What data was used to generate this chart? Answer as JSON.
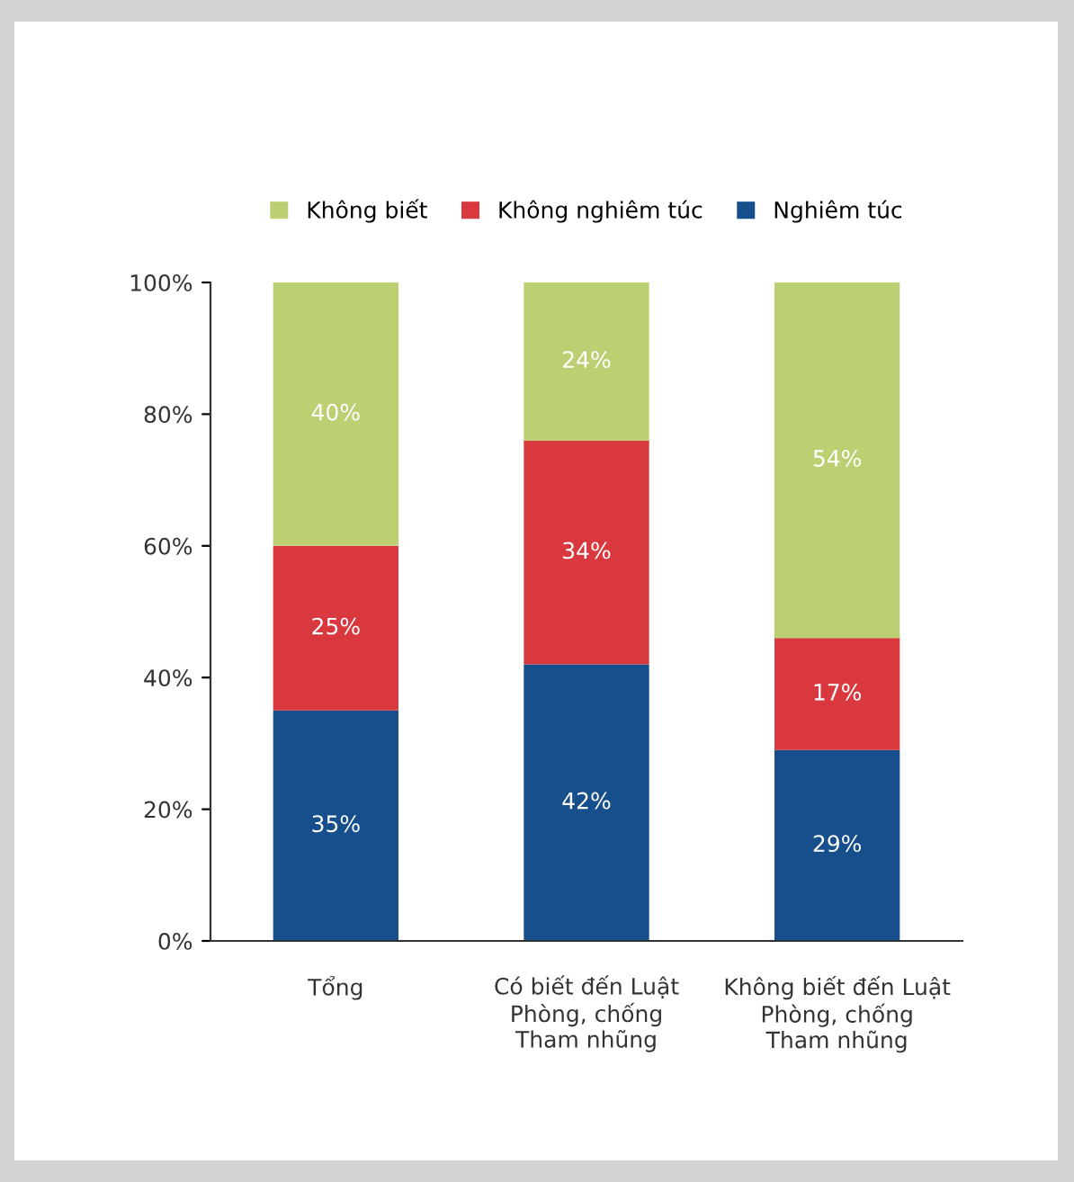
{
  "chart_data": {
    "type": "bar",
    "stacked": true,
    "categories": [
      "Tổng",
      "Có biết đến Luật\nPhòng, chống\nTham nhũng",
      "Không biết đến Luật\nPhòng, chống\nTham nhũng"
    ],
    "series": [
      {
        "name": "Nghiêm túc",
        "color": "#174f8c",
        "values": [
          35,
          42,
          29
        ],
        "value_labels": [
          "35%",
          "42%",
          "29%"
        ]
      },
      {
        "name": "Không nghiêm túc",
        "color": "#d9393e",
        "values": [
          25,
          34,
          17
        ],
        "value_labels": [
          "25%",
          "34%",
          "17%"
        ]
      },
      {
        "name": "Không biết",
        "color": "#bccf72",
        "values": [
          40,
          24,
          54
        ],
        "value_labels": [
          "40%",
          "24%",
          "54%"
        ]
      }
    ],
    "ylim": [
      0,
      100
    ],
    "yticks": [
      {
        "value": 0,
        "label": "0%"
      },
      {
        "value": 20,
        "label": "20%"
      },
      {
        "value": 40,
        "label": "40%"
      },
      {
        "value": 60,
        "label": "60%"
      },
      {
        "value": 80,
        "label": "80%"
      },
      {
        "value": 100,
        "label": "100%"
      }
    ],
    "grid": false,
    "legend": "top"
  }
}
